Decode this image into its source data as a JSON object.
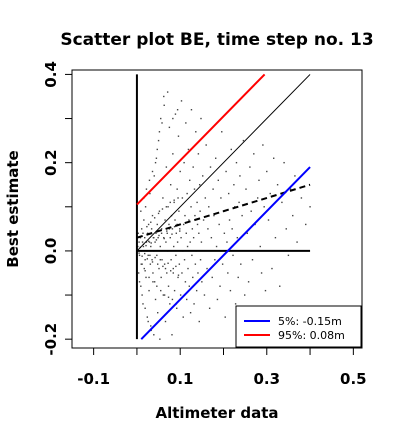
{
  "chart_data": {
    "type": "scatter",
    "title": "Scatter plot BE, time step no. 13",
    "xlabel": "Altimeter data",
    "ylabel": "Best estimate",
    "xlim": [
      -0.15,
      0.52
    ],
    "ylim": [
      -0.22,
      0.41
    ],
    "x_ticks": [
      -0.1,
      0.1,
      0.3,
      0.5
    ],
    "x_tick_labels": [
      "-0.1",
      "0.1",
      "0.3",
      "0.5"
    ],
    "y_ticks": [
      -0.2,
      0.0,
      0.2,
      0.4
    ],
    "y_tick_labels": [
      "-0.2",
      "0.0",
      "0.2",
      "0.4"
    ],
    "lines": [
      {
        "id": "vertical-axis-line",
        "color": "#000000",
        "width": 2,
        "dash": "",
        "x": [
          0.0,
          0.0
        ],
        "y": [
          -0.2,
          0.4
        ]
      },
      {
        "id": "horizontal-zero-line",
        "color": "#000000",
        "width": 2,
        "dash": "",
        "x": [
          0.0,
          0.4
        ],
        "y": [
          0.0,
          0.0
        ]
      },
      {
        "id": "identity-line",
        "color": "#000000",
        "width": 1,
        "dash": "",
        "x": [
          0.0,
          0.4
        ],
        "y": [
          0.0,
          0.4
        ]
      },
      {
        "id": "regression-line",
        "color": "#000000",
        "width": 2,
        "dash": "6,4",
        "x": [
          0.0,
          0.4
        ],
        "y": [
          0.03,
          0.15
        ]
      },
      {
        "id": "percentile-95-line",
        "color": "#ff0000",
        "width": 2,
        "dash": "",
        "x": [
          0.0,
          0.295
        ],
        "y": [
          0.105,
          0.4
        ]
      },
      {
        "id": "percentile-5-line",
        "color": "#0000ff",
        "width": 2,
        "dash": "",
        "x": [
          0.01,
          0.4
        ],
        "y": [
          -0.2,
          0.19
        ]
      }
    ],
    "legend": {
      "position": "bottom-right",
      "entries": [
        {
          "label": "5%: -0.15m",
          "color": "#0000ff"
        },
        {
          "label": "95%:  0.08m",
          "color": "#ff0000"
        }
      ]
    },
    "points": [
      [
        0.0,
        -0.02
      ],
      [
        0.002,
        0.01
      ],
      [
        0.004,
        -0.05
      ],
      [
        0.005,
        0.02
      ],
      [
        0.006,
        -0.01
      ],
      [
        0.008,
        0.03
      ],
      [
        0.009,
        -0.08
      ],
      [
        0.01,
        0.0
      ],
      [
        0.011,
        0.05
      ],
      [
        0.012,
        -0.03
      ],
      [
        0.013,
        0.02
      ],
      [
        0.014,
        -0.12
      ],
      [
        0.015,
        0.01
      ],
      [
        0.016,
        0.07
      ],
      [
        0.017,
        -0.04
      ],
      [
        0.018,
        0.03
      ],
      [
        0.019,
        -0.02
      ],
      [
        0.02,
        0.1
      ],
      [
        0.021,
        -0.06
      ],
      [
        0.022,
        0.02
      ],
      [
        0.023,
        0.0
      ],
      [
        0.024,
        -0.15
      ],
      [
        0.025,
        0.04
      ],
      [
        0.026,
        -0.01
      ],
      [
        0.027,
        0.06
      ],
      [
        0.028,
        -0.09
      ],
      [
        0.029,
        0.02
      ],
      [
        0.03,
        0.13
      ],
      [
        0.031,
        -0.03
      ],
      [
        0.032,
        0.01
      ],
      [
        0.033,
        -0.18
      ],
      [
        0.034,
        0.05
      ],
      [
        0.035,
        -0.02
      ],
      [
        0.036,
        0.08
      ],
      [
        0.037,
        -0.05
      ],
      [
        0.038,
        0.03
      ],
      [
        0.039,
        0.0
      ],
      [
        0.04,
        0.17
      ],
      [
        0.041,
        -0.07
      ],
      [
        0.042,
        0.02
      ],
      [
        0.043,
        -0.11
      ],
      [
        0.044,
        0.04
      ],
      [
        0.045,
        0.21
      ],
      [
        0.046,
        -0.01
      ],
      [
        0.047,
        0.06
      ],
      [
        0.048,
        -0.14
      ],
      [
        0.049,
        0.03
      ],
      [
        0.05,
        0.25
      ],
      [
        0.051,
        -0.04
      ],
      [
        0.052,
        0.09
      ],
      [
        0.053,
        -0.2
      ],
      [
        0.054,
        0.01
      ],
      [
        0.055,
        0.3
      ],
      [
        0.056,
        -0.06
      ],
      [
        0.057,
        0.05
      ],
      [
        0.058,
        -0.02
      ],
      [
        0.06,
        0.12
      ],
      [
        0.061,
        -0.1
      ],
      [
        0.062,
        0.03
      ],
      [
        0.063,
        0.33
      ],
      [
        0.064,
        -0.03
      ],
      [
        0.065,
        0.07
      ],
      [
        0.066,
        -0.16
      ],
      [
        0.067,
        0.02
      ],
      [
        0.068,
        0.19
      ],
      [
        0.069,
        -0.05
      ],
      [
        0.07,
        0.04
      ],
      [
        0.071,
        0.0
      ],
      [
        0.072,
        0.1
      ],
      [
        0.073,
        -0.08
      ],
      [
        0.074,
        0.06
      ],
      [
        0.075,
        0.28
      ],
      [
        0.076,
        -0.12
      ],
      [
        0.077,
        0.03
      ],
      [
        0.078,
        0.15
      ],
      [
        0.079,
        -0.02
      ],
      [
        0.08,
        0.08
      ],
      [
        0.081,
        -0.19
      ],
      [
        0.082,
        0.05
      ],
      [
        0.083,
        0.22
      ],
      [
        0.084,
        -0.04
      ],
      [
        0.085,
        0.01
      ],
      [
        0.086,
        0.11
      ],
      [
        0.087,
        -0.09
      ],
      [
        0.088,
        0.07
      ],
      [
        0.089,
        0.31
      ],
      [
        0.09,
        -0.01
      ],
      [
        0.091,
        0.04
      ],
      [
        0.092,
        -0.13
      ],
      [
        0.093,
        0.14
      ],
      [
        0.094,
        0.02
      ],
      [
        0.095,
        -0.06
      ],
      [
        0.096,
        0.26
      ],
      [
        0.097,
        0.09
      ],
      [
        0.098,
        -0.03
      ],
      [
        0.099,
        0.05
      ],
      [
        0.1,
        0.18
      ],
      [
        0.101,
        -0.1
      ],
      [
        0.102,
        0.03
      ],
      [
        0.103,
        0.34
      ],
      [
        0.104,
        -0.05
      ],
      [
        0.105,
        0.12
      ],
      [
        0.106,
        0.0
      ],
      [
        0.107,
        -0.15
      ],
      [
        0.108,
        0.06
      ],
      [
        0.109,
        0.2
      ],
      [
        0.11,
        -0.02
      ],
      [
        0.111,
        0.08
      ],
      [
        0.112,
        -0.07
      ],
      [
        0.113,
        0.29
      ],
      [
        0.114,
        0.04
      ],
      [
        0.115,
        -0.11
      ],
      [
        0.116,
        0.13
      ],
      [
        0.117,
        0.01
      ],
      [
        0.118,
        -0.04
      ],
      [
        0.119,
        0.23
      ],
      [
        0.12,
        0.07
      ],
      [
        0.121,
        -0.08
      ],
      [
        0.122,
        0.16
      ],
      [
        0.123,
        0.02
      ],
      [
        0.124,
        -0.14
      ],
      [
        0.125,
        0.1
      ],
      [
        0.126,
        0.32
      ],
      [
        0.127,
        -0.01
      ],
      [
        0.128,
        0.05
      ],
      [
        0.129,
        -0.06
      ],
      [
        0.13,
        0.19
      ],
      [
        0.131,
        0.03
      ],
      [
        0.132,
        -0.12
      ],
      [
        0.133,
        0.14
      ],
      [
        0.134,
        0.08
      ],
      [
        0.135,
        -0.03
      ],
      [
        0.136,
        0.27
      ],
      [
        0.137,
        0.0
      ],
      [
        0.138,
        -0.09
      ],
      [
        0.139,
        0.11
      ],
      [
        0.14,
        0.06
      ],
      [
        0.141,
        -0.05
      ],
      [
        0.142,
        0.22
      ],
      [
        0.143,
        0.04
      ],
      [
        0.144,
        -0.16
      ],
      [
        0.145,
        0.15
      ],
      [
        0.146,
        0.09
      ],
      [
        0.147,
        -0.02
      ],
      [
        0.148,
        0.3
      ],
      [
        0.149,
        0.02
      ],
      [
        0.15,
        -0.07
      ],
      [
        0.152,
        0.17
      ],
      [
        0.154,
        0.07
      ],
      [
        0.156,
        -0.1
      ],
      [
        0.158,
        0.12
      ],
      [
        0.16,
        0.24
      ],
      [
        0.162,
        -0.04
      ],
      [
        0.164,
        0.05
      ],
      [
        0.166,
        0.1
      ],
      [
        0.168,
        -0.13
      ],
      [
        0.17,
        0.19
      ],
      [
        0.172,
        0.03
      ],
      [
        0.174,
        -0.06
      ],
      [
        0.176,
        0.14
      ],
      [
        0.178,
        0.08
      ],
      [
        0.18,
        -0.02
      ],
      [
        0.182,
        0.21
      ],
      [
        0.184,
        0.01
      ],
      [
        0.186,
        -0.11
      ],
      [
        0.188,
        0.16
      ],
      [
        0.19,
        0.06
      ],
      [
        0.192,
        -0.08
      ],
      [
        0.194,
        0.12
      ],
      [
        0.196,
        0.27
      ],
      [
        0.198,
        -0.03
      ],
      [
        0.2,
        0.09
      ],
      [
        0.202,
        0.04
      ],
      [
        0.204,
        -0.15
      ],
      [
        0.206,
        0.18
      ],
      [
        0.208,
        0.02
      ],
      [
        0.21,
        -0.05
      ],
      [
        0.212,
        0.13
      ],
      [
        0.214,
        0.07
      ],
      [
        0.216,
        -0.09
      ],
      [
        0.218,
        0.23
      ],
      [
        0.22,
        0.05
      ],
      [
        0.222,
        -0.01
      ],
      [
        0.224,
        0.15
      ],
      [
        0.226,
        0.1
      ],
      [
        0.228,
        -0.12
      ],
      [
        0.23,
        0.2
      ],
      [
        0.232,
        0.03
      ],
      [
        0.234,
        -0.06
      ],
      [
        0.236,
        0.11
      ],
      [
        0.238,
        0.17
      ],
      [
        0.24,
        -0.03
      ],
      [
        0.243,
        0.08
      ],
      [
        0.246,
        0.25
      ],
      [
        0.249,
        -0.1
      ],
      [
        0.252,
        0.14
      ],
      [
        0.255,
        0.04
      ],
      [
        0.258,
        -0.07
      ],
      [
        0.261,
        0.19
      ],
      [
        0.264,
        0.09
      ],
      [
        0.267,
        -0.02
      ],
      [
        0.27,
        0.22
      ],
      [
        0.273,
        0.06
      ],
      [
        0.276,
        -0.14
      ],
      [
        0.279,
        0.12
      ],
      [
        0.282,
        0.16
      ],
      [
        0.285,
        0.01
      ],
      [
        0.288,
        -0.05
      ],
      [
        0.291,
        0.24
      ],
      [
        0.294,
        0.1
      ],
      [
        0.297,
        -0.09
      ],
      [
        0.3,
        0.18
      ],
      [
        0.304,
        0.07
      ],
      [
        0.308,
        0.13
      ],
      [
        0.312,
        -0.04
      ],
      [
        0.316,
        0.21
      ],
      [
        0.32,
        0.03
      ],
      [
        0.325,
        0.15
      ],
      [
        0.33,
        -0.08
      ],
      [
        0.335,
        0.11
      ],
      [
        0.34,
        0.2
      ],
      [
        0.345,
        0.05
      ],
      [
        0.35,
        -0.01
      ],
      [
        0.355,
        0.14
      ],
      [
        0.36,
        0.08
      ],
      [
        0.365,
        0.17
      ],
      [
        0.37,
        0.02
      ],
      [
        0.38,
        0.12
      ],
      [
        0.39,
        0.06
      ],
      [
        0.4,
        0.1
      ],
      [
        0.005,
        -0.005
      ],
      [
        0.008,
        0.008
      ],
      [
        0.012,
        -0.012
      ],
      [
        0.015,
        0.015
      ],
      [
        0.018,
        -0.006
      ],
      [
        0.021,
        0.012
      ],
      [
        0.024,
        -0.018
      ],
      [
        0.027,
        0.022
      ],
      [
        0.03,
        -0.01
      ],
      [
        0.033,
        0.018
      ],
      [
        0.036,
        -0.025
      ],
      [
        0.039,
        0.03
      ],
      [
        0.042,
        -0.015
      ],
      [
        0.045,
        0.025
      ],
      [
        0.048,
        -0.03
      ],
      [
        0.051,
        0.035
      ],
      [
        0.054,
        -0.02
      ],
      [
        0.057,
        0.04
      ],
      [
        0.06,
        -0.035
      ],
      [
        0.063,
        0.028
      ],
      [
        0.066,
        -0.04
      ],
      [
        0.069,
        0.045
      ],
      [
        0.072,
        -0.028
      ],
      [
        0.075,
        0.05
      ],
      [
        0.078,
        -0.045
      ],
      [
        0.081,
        0.038
      ],
      [
        0.084,
        -0.05
      ],
      [
        0.087,
        0.055
      ],
      [
        0.09,
        -0.035
      ],
      [
        0.093,
        0.06
      ],
      [
        0.096,
        -0.055
      ],
      [
        0.099,
        0.045
      ],
      [
        0.01,
        -0.03
      ],
      [
        0.014,
        0.04
      ],
      [
        0.019,
        -0.045
      ],
      [
        0.023,
        0.055
      ],
      [
        0.028,
        -0.06
      ],
      [
        0.032,
        0.065
      ],
      [
        0.037,
        -0.07
      ],
      [
        0.041,
        0.075
      ],
      [
        0.046,
        -0.08
      ],
      [
        0.05,
        0.085
      ],
      [
        0.055,
        -0.09
      ],
      [
        0.059,
        0.095
      ],
      [
        0.064,
        -0.1
      ],
      [
        0.068,
        0.1
      ],
      [
        0.073,
        -0.105
      ],
      [
        0.077,
        0.11
      ],
      [
        0.082,
        -0.11
      ],
      [
        0.086,
        0.115
      ],
      [
        0.091,
        -0.12
      ],
      [
        0.095,
        0.12
      ],
      [
        0.003,
        0.04
      ],
      [
        0.006,
        -0.07
      ],
      [
        0.009,
        0.09
      ],
      [
        0.012,
        -0.1
      ],
      [
        0.016,
        0.12
      ],
      [
        0.019,
        -0.13
      ],
      [
        0.022,
        0.14
      ],
      [
        0.026,
        -0.16
      ],
      [
        0.029,
        0.16
      ],
      [
        0.032,
        -0.17
      ],
      [
        0.036,
        0.18
      ],
      [
        0.039,
        -0.19
      ],
      [
        0.043,
        0.2
      ],
      [
        0.047,
        0.23
      ],
      [
        0.052,
        0.27
      ],
      [
        0.058,
        0.29
      ],
      [
        0.062,
        0.35
      ],
      [
        0.071,
        0.36
      ],
      [
        0.083,
        0.3
      ],
      [
        0.094,
        0.32
      ]
    ]
  }
}
